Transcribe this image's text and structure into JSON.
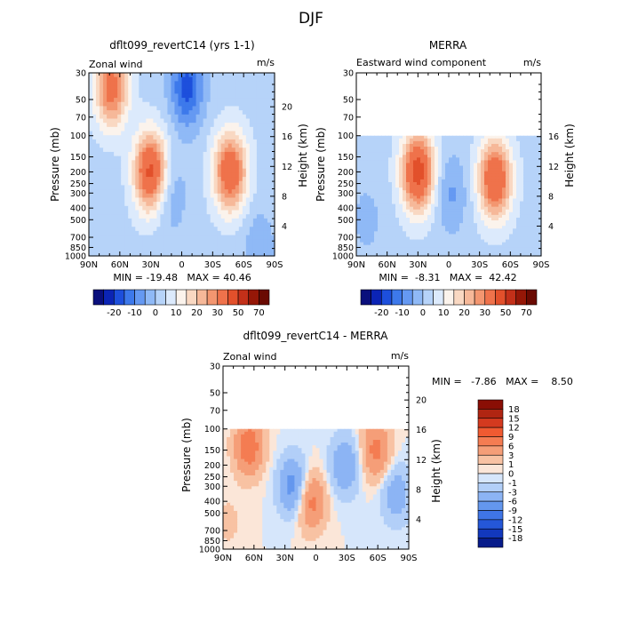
{
  "figure_title": "DJF",
  "colors": {
    "blue_scale": [
      "#08107a",
      "#0a22b0",
      "#1646d6",
      "#2f6de8",
      "#4e8ef0",
      "#79aef4",
      "#a7ccf8",
      "#d0e4fb",
      "#e6f0fc"
    ],
    "red_scale": [
      "#fbe9dc",
      "#f8ccb0",
      "#f6ad88",
      "#f48c62",
      "#f06a40",
      "#e04a26",
      "#c32f18",
      "#9b1a0c",
      "#6e0c04"
    ],
    "zero_fill": "#eef4fd",
    "panel_blank": "#ffffff"
  },
  "chart_data": [
    {
      "type": "heatmap",
      "title": "dflt099_revertC14 (yrs 1-1)",
      "subtitle_left": "Zonal wind",
      "subtitle_right": "m/s",
      "xlabel": "",
      "ylabel": "Pressure (mb)",
      "ylabel_right": "Height (km)",
      "x_tick_labels": [
        "90N",
        "60N",
        "30N",
        "0",
        "30S",
        "60S",
        "90S"
      ],
      "x_ticks": [
        90,
        60,
        30,
        0,
        -30,
        -60,
        -90
      ],
      "y_tick_labels": [
        "30",
        "50",
        "70",
        "100",
        "150",
        "200",
        "250",
        "300",
        "400",
        "500",
        "700",
        "850",
        "1000"
      ],
      "y_ticks": [
        30,
        50,
        70,
        100,
        150,
        200,
        250,
        300,
        400,
        500,
        700,
        850,
        1000
      ],
      "y_right_tick_labels": [
        "4",
        "8",
        "12",
        "16",
        "20"
      ],
      "y_right_ticks": [
        4,
        8,
        12,
        16,
        20
      ],
      "ylim": [
        1000,
        30
      ],
      "yscale": "log",
      "xlim": [
        90,
        -90
      ],
      "data_top_pressure": 30,
      "stats_text": "MIN = -19.48   MAX = 40.46",
      "min": -19.48,
      "max": 40.46,
      "colorbar": {
        "orientation": "horizontal",
        "labels": [
          "-20",
          "-10",
          "0",
          "10",
          "20",
          "30",
          "50",
          "70"
        ],
        "levels": [
          -25,
          -20,
          -15,
          -10,
          -5,
          0,
          5,
          10,
          15,
          20,
          25,
          30,
          40,
          50,
          60,
          70
        ],
        "colors": [
          "#0a0f7c",
          "#0b24b5",
          "#1d4fdc",
          "#3d79eb",
          "#6599f2",
          "#8fb9f6",
          "#b6d3f9",
          "#dceafc",
          "#fbf3ec",
          "#f9d8c2",
          "#f6b899",
          "#f39670",
          "#ef724b",
          "#e2502b",
          "#c33019",
          "#951707",
          "#6a0a02"
        ]
      },
      "features": [
        {
          "lat": 68,
          "p": 40,
          "value": 32
        },
        {
          "lat": 30,
          "p": 200,
          "value": 40.5
        },
        {
          "lat": -47,
          "p": 200,
          "value": 36
        },
        {
          "lat": -5,
          "p": 40,
          "value": -19.5
        },
        {
          "lat": 12,
          "p": 300,
          "value": -8
        },
        {
          "lat": -75,
          "p": 850,
          "value": -6
        }
      ]
    },
    {
      "type": "heatmap",
      "title": "MERRA",
      "subtitle_left": "Eastward wind component",
      "subtitle_right": "m/s",
      "xlabel": "",
      "ylabel": "Pressure (mb)",
      "ylabel_right": "Height (km)",
      "x_tick_labels": [
        "90N",
        "60N",
        "30N",
        "0",
        "30S",
        "60S",
        "90S"
      ],
      "x_ticks": [
        90,
        60,
        30,
        0,
        -30,
        -60,
        -90
      ],
      "y_tick_labels": [
        "30",
        "50",
        "70",
        "100",
        "150",
        "200",
        "250",
        "300",
        "400",
        "500",
        "700",
        "850",
        "1000"
      ],
      "y_ticks": [
        30,
        50,
        70,
        100,
        150,
        200,
        250,
        300,
        400,
        500,
        700,
        850,
        1000
      ],
      "y_right_tick_labels": [
        "4",
        "8",
        "12",
        "16"
      ],
      "y_right_ticks": [
        4,
        8,
        12,
        16
      ],
      "ylim": [
        1000,
        30
      ],
      "yscale": "log",
      "xlim": [
        90,
        -90
      ],
      "data_top_pressure": 100,
      "stats_text": "MIN =  -8.31   MAX =  42.42",
      "min": -8.31,
      "max": 42.42,
      "colorbar": {
        "orientation": "horizontal",
        "labels": [
          "-20",
          "-10",
          "0",
          "10",
          "20",
          "30",
          "50",
          "70"
        ],
        "levels": [
          -25,
          -20,
          -15,
          -10,
          -5,
          0,
          5,
          10,
          15,
          20,
          25,
          30,
          40,
          50,
          60,
          70
        ],
        "colors": [
          "#0a0f7c",
          "#0b24b5",
          "#1d4fdc",
          "#3d79eb",
          "#6599f2",
          "#8fb9f6",
          "#b6d3f9",
          "#dceafc",
          "#fbf3ec",
          "#f9d8c2",
          "#f6b899",
          "#f39670",
          "#ef724b",
          "#e2502b",
          "#c33019",
          "#951707",
          "#6a0a02"
        ]
      },
      "features": [
        {
          "lat": 30,
          "p": 200,
          "value": 42.4
        },
        {
          "lat": -45,
          "p": 230,
          "value": 38
        },
        {
          "lat": -2,
          "p": 300,
          "value": -8.3
        },
        {
          "lat": 80,
          "p": 500,
          "value": -4
        }
      ]
    },
    {
      "type": "heatmap",
      "title": "dflt099_revertC14 - MERRA",
      "subtitle_left": "Zonal wind",
      "subtitle_right": "m/s",
      "xlabel": "",
      "ylabel": "Pressure (mb)",
      "ylabel_right": "Height (km)",
      "x_tick_labels": [
        "90N",
        "60N",
        "30N",
        "0",
        "30S",
        "60S",
        "90S"
      ],
      "x_ticks": [
        90,
        60,
        30,
        0,
        -30,
        -60,
        -90
      ],
      "y_tick_labels": [
        "30",
        "50",
        "70",
        "100",
        "150",
        "200",
        "250",
        "300",
        "400",
        "500",
        "700",
        "850",
        "1000"
      ],
      "y_ticks": [
        30,
        50,
        70,
        100,
        150,
        200,
        250,
        300,
        400,
        500,
        700,
        850,
        1000
      ],
      "y_right_tick_labels": [
        "4",
        "8",
        "12",
        "16",
        "20"
      ],
      "y_right_ticks": [
        4,
        8,
        12,
        16,
        20
      ],
      "ylim": [
        1000,
        30
      ],
      "yscale": "log",
      "xlim": [
        90,
        -90
      ],
      "data_top_pressure": 100,
      "stats_text": "MIN =   -7.86   MAX =    8.50",
      "min": -7.86,
      "max": 8.5,
      "colorbar": {
        "orientation": "vertical",
        "labels": [
          "18",
          "15",
          "12",
          "9",
          "6",
          "3",
          "1",
          "0",
          "-1",
          "-3",
          "-6",
          "-9",
          "-12",
          "-15",
          "-18"
        ],
        "levels": [
          18,
          15,
          12,
          9,
          6,
          3,
          1,
          0,
          -1,
          -3,
          -6,
          -9,
          -12,
          -15,
          -18
        ],
        "colors": [
          "#8a0e05",
          "#b02512",
          "#d43a1f",
          "#f05a31",
          "#f47c52",
          "#f59e78",
          "#f8c2a3",
          "#fbe6d8",
          "#d6e6fb",
          "#b2cff8",
          "#8cb4f4",
          "#6497ee",
          "#3f75e6",
          "#2557d8",
          "#1238bd",
          "#071b8a"
        ]
      },
      "features": [
        {
          "lat": 65,
          "p": 140,
          "value": 8.5
        },
        {
          "lat": 5,
          "p": 400,
          "value": 7.5
        },
        {
          "lat": -58,
          "p": 150,
          "value": 7
        },
        {
          "lat": 22,
          "p": 300,
          "value": -7.86
        },
        {
          "lat": -28,
          "p": 200,
          "value": -6
        },
        {
          "lat": -78,
          "p": 350,
          "value": -5
        },
        {
          "lat": 85,
          "p": 600,
          "value": 1.5
        }
      ]
    }
  ]
}
